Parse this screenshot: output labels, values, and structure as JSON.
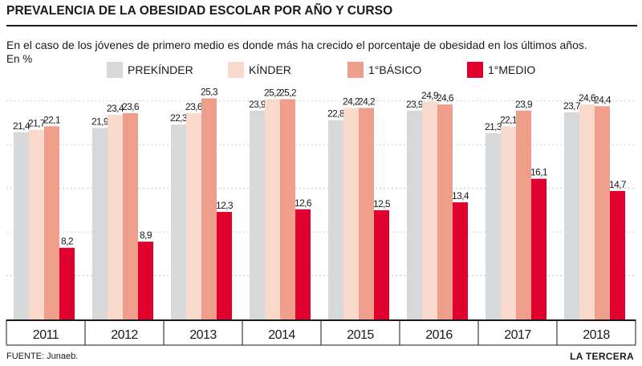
{
  "header": {
    "title": "PREVALENCIA DE LA OBESIDAD ESCOLAR POR AÑO Y CURSO",
    "subtitle": "En el caso de los jóvenes de primero medio es donde más ha crecido el porcentaje de obesidad en los últimos años.",
    "unit": "En %"
  },
  "footer": {
    "source": "FUENTE: Junaeb.",
    "brand": "LA TERCERA"
  },
  "chart_data": {
    "type": "bar",
    "title": "PREVALENCIA DE LA OBESIDAD ESCOLAR POR AÑO Y CURSO",
    "subtitle": "En el caso de los jóvenes de primero medio es donde más ha crecido el porcentaje de obesidad en los últimos años.",
    "ylabel": "En %",
    "xlabel": "",
    "ylim": [
      0,
      27
    ],
    "grid": true,
    "legend": "top",
    "categories": [
      "2011",
      "2012",
      "2013",
      "2014",
      "2015",
      "2016",
      "2017",
      "2018"
    ],
    "series": [
      {
        "name": "PREKÍNDER",
        "color": "#d7d8da",
        "values": [
          21.4,
          21.9,
          22.3,
          23.9,
          22.8,
          23.9,
          21.3,
          23.7
        ],
        "labels": [
          "21,4",
          "21,9",
          "22,3",
          "23,9",
          "22,8",
          "23,9",
          "21,3",
          "23,7"
        ]
      },
      {
        "name": "KÍNDER",
        "color": "#f9d9cc",
        "values": [
          21.7,
          23.4,
          23.6,
          25.2,
          24.2,
          24.9,
          22.1,
          24.6
        ],
        "labels": [
          "21,7",
          "23,4",
          "23,6",
          "25,2",
          "24,2",
          "24,9",
          "22,1",
          "24,6"
        ]
      },
      {
        "name": "1°BÁSICO",
        "color": "#ee9e8a",
        "values": [
          22.1,
          23.6,
          25.3,
          25.2,
          24.2,
          24.6,
          23.9,
          24.4
        ],
        "labels": [
          "22,1",
          "23,6",
          "25,3",
          "25,2",
          "24,2",
          "24,6",
          "23,9",
          "24,4"
        ]
      },
      {
        "name": "1°MEDIO",
        "color": "#e0002d",
        "values": [
          8.2,
          8.9,
          12.3,
          12.6,
          12.5,
          13.4,
          16.1,
          14.7
        ],
        "labels": [
          "8,2",
          "8,9",
          "12,3",
          "12,6",
          "12,5",
          "13,4",
          "16,1",
          "14,7"
        ]
      }
    ]
  }
}
